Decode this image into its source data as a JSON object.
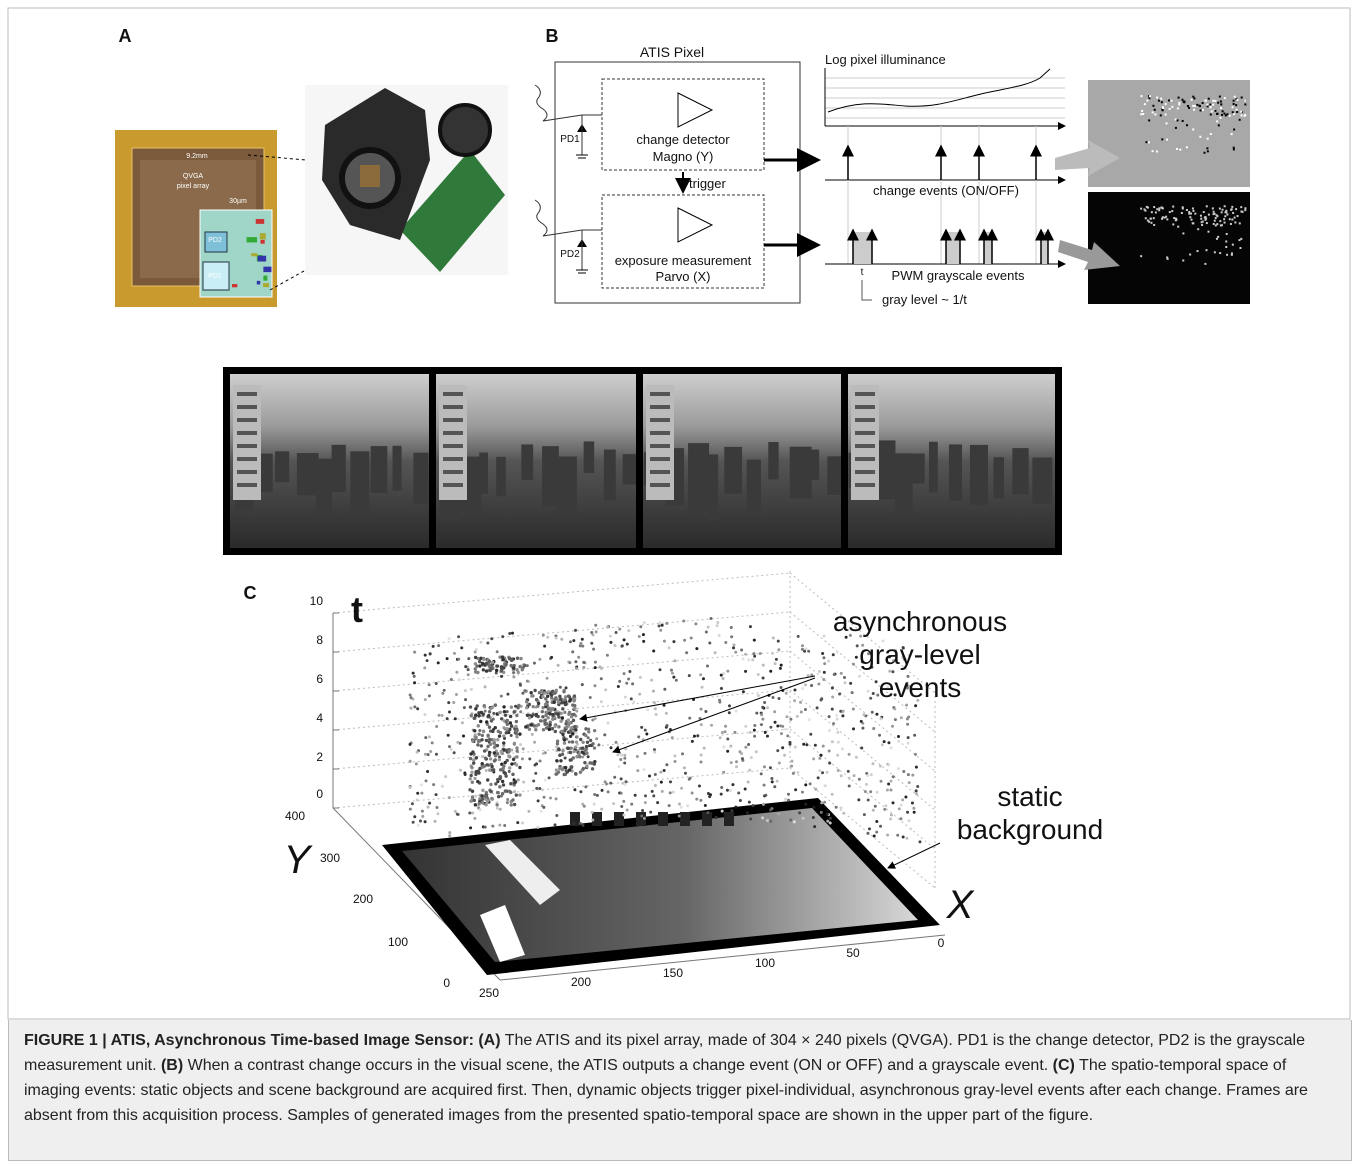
{
  "panels": {
    "a": {
      "label": "A",
      "chip": {
        "size": "9.2mm",
        "name": [
          "QVGA",
          "pixel array"
        ],
        "pitch": "30µm",
        "pd2": "PD2",
        "pd1": "PD1"
      }
    },
    "b": {
      "label": "B",
      "pixel_title": "ATIS Pixel",
      "pd1": "PD1",
      "detector": [
        "change detector",
        "Magno (Y)"
      ],
      "trigger": "trigger",
      "pd2": "PD2",
      "exposure": [
        "exposure measurement",
        "Parvo (X)"
      ],
      "log_label": "Log pixel illuminance",
      "change_events": "change events (ON/OFF)",
      "t": "t",
      "pwm": "PWM grayscale events",
      "gray_level": "gray level ~ 1/t"
    },
    "c": {
      "label": "C",
      "t_axis": "t",
      "t_ticks": [
        0,
        2,
        4,
        6,
        8,
        10
      ],
      "y_axis": "Y",
      "y_ticks": [
        0,
        100,
        200,
        300,
        400
      ],
      "x_axis": "X",
      "x_ticks": [
        250,
        200,
        150,
        100,
        50,
        0
      ],
      "events_note": [
        "asynchronous",
        "gray-level",
        "events"
      ],
      "background_note": [
        "static",
        "background"
      ]
    }
  },
  "caption": [
    {
      "text": "FIGURE 1 | ATIS, Asynchronous Time-based Image Sensor: (A)",
      "bold": true
    },
    {
      "text": " The ATIS and its pixel array, made of 304 × 240 pixels (QVGA). PD1 is the change detector, PD2 is the grayscale measurement unit. ",
      "bold": false
    },
    {
      "text": "(B)",
      "bold": true
    },
    {
      "text": " When a contrast change occurs in the visual scene, the ATIS outputs a change event (ON or OFF) and a grayscale event. ",
      "bold": false
    },
    {
      "text": "(C)",
      "bold": true
    },
    {
      "text": " The spatio-temporal space of imaging events: static objects and scene background are acquired first. Then, dynamic objects trigger pixel-individual, asynchronous gray-level events after each change. Frames are absent from this acquisition process. Samples of generated images from the presented spatio-temporal space are shown in the upper part of the figure.",
      "bold": false
    }
  ]
}
